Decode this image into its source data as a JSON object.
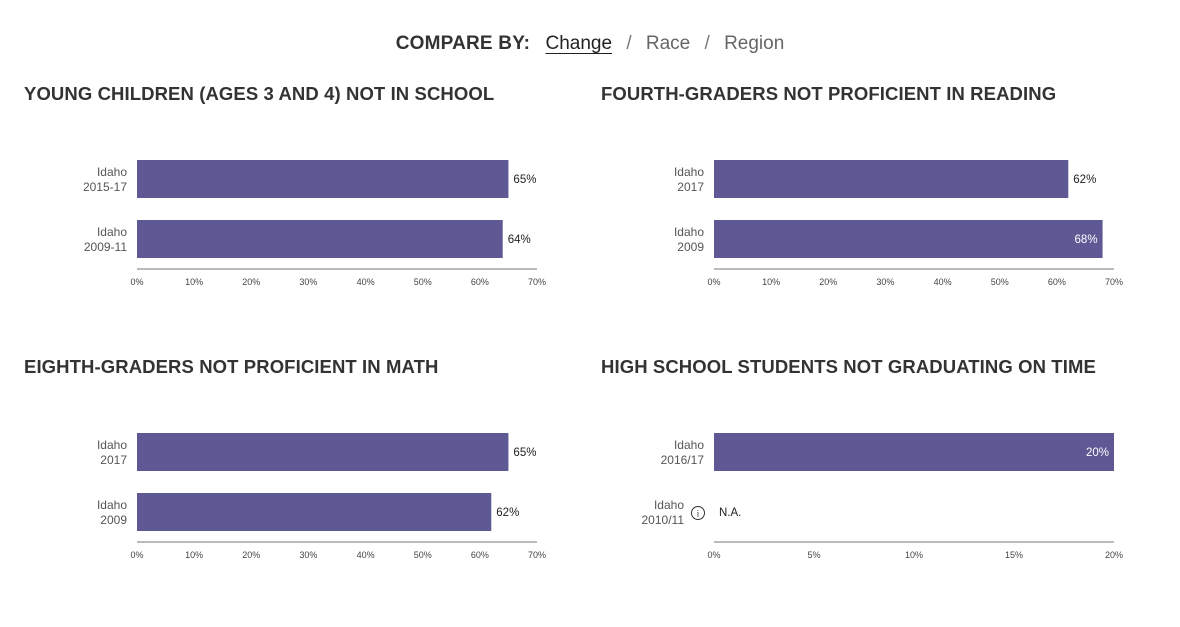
{
  "compare": {
    "label": "COMPARE BY:",
    "options": [
      "Change",
      "Race",
      "Region"
    ],
    "active": 0,
    "separator": "/"
  },
  "colors": {
    "bar": "#5e5895",
    "value_inside": "#ffffff",
    "value_outside": "#222222"
  },
  "chart_data": [
    {
      "type": "bar",
      "title": "YOUNG CHILDREN (AGES 3 AND 4) NOT IN SCHOOL",
      "orientation": "horizontal",
      "categories": [
        [
          "Idaho",
          "2015-17"
        ],
        [
          "Idaho",
          "2009-11"
        ]
      ],
      "values": [
        65,
        64
      ],
      "value_labels": [
        "65%",
        "64%"
      ],
      "xlim": [
        0,
        70
      ],
      "xticks": [
        "0%",
        "10%",
        "20%",
        "30%",
        "40%",
        "50%",
        "60%",
        "70%"
      ],
      "grid": false
    },
    {
      "type": "bar",
      "title": "FOURTH-GRADERS NOT PROFICIENT IN READING",
      "orientation": "horizontal",
      "categories": [
        [
          "Idaho",
          "2017"
        ],
        [
          "Idaho",
          "2009"
        ]
      ],
      "values": [
        62,
        68
      ],
      "value_labels": [
        "62%",
        "68%"
      ],
      "xlim": [
        0,
        70
      ],
      "xticks": [
        "0%",
        "10%",
        "20%",
        "30%",
        "40%",
        "50%",
        "60%",
        "70%"
      ],
      "grid": false
    },
    {
      "type": "bar",
      "title": "EIGHTH-GRADERS NOT PROFICIENT IN MATH",
      "orientation": "horizontal",
      "categories": [
        [
          "Idaho",
          "2017"
        ],
        [
          "Idaho",
          "2009"
        ]
      ],
      "values": [
        65,
        62
      ],
      "value_labels": [
        "65%",
        "62%"
      ],
      "xlim": [
        0,
        70
      ],
      "xticks": [
        "0%",
        "10%",
        "20%",
        "30%",
        "40%",
        "50%",
        "60%",
        "70%"
      ],
      "grid": false
    },
    {
      "type": "bar",
      "title": "HIGH SCHOOL STUDENTS NOT GRADUATING ON TIME",
      "orientation": "horizontal",
      "categories": [
        [
          "Idaho",
          "2016/17"
        ],
        [
          "Idaho",
          "2010/11"
        ]
      ],
      "values": [
        20,
        null
      ],
      "value_labels": [
        "20%",
        "N.A."
      ],
      "info_icon": [
        false,
        true
      ],
      "xlim": [
        0,
        20
      ],
      "xticks": [
        "0%",
        "5%",
        "10%",
        "15%",
        "20%"
      ],
      "grid": false
    }
  ]
}
